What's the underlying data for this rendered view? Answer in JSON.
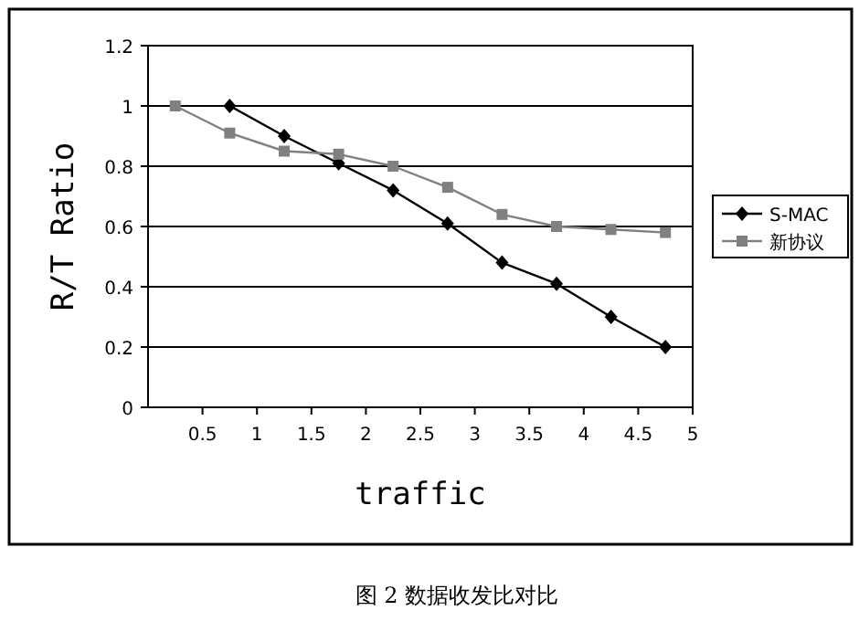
{
  "chart_data": {
    "type": "line",
    "xlabel": "traffic",
    "ylabel": "R/T Ratio",
    "xlim": [
      0,
      5
    ],
    "xticks": [
      0.5,
      1,
      1.5,
      2,
      2.5,
      3,
      3.5,
      4,
      4.5,
      5
    ],
    "ylim": [
      0,
      1.2
    ],
    "yticks": [
      0,
      0.2,
      0.4,
      0.6,
      0.8,
      1,
      1.2
    ],
    "grid": "y",
    "legend": "right",
    "line_style": "solid",
    "series": [
      {
        "name": "S-MAC",
        "color": "#000000",
        "marker": "diamond",
        "x": [
          0.75,
          1.25,
          1.75,
          2.25,
          2.75,
          3.25,
          3.75,
          4.25,
          4.75
        ],
        "values": [
          1.0,
          0.9,
          0.81,
          0.72,
          0.61,
          0.48,
          0.41,
          0.3,
          0.2
        ]
      },
      {
        "name": "新协议",
        "color": "#808080",
        "marker": "square",
        "x": [
          0.25,
          0.75,
          1.25,
          1.75,
          2.25,
          2.75,
          3.25,
          3.75,
          4.25,
          4.75
        ],
        "values": [
          1.0,
          0.91,
          0.85,
          0.84,
          0.8,
          0.73,
          0.64,
          0.6,
          0.59,
          0.58
        ]
      }
    ],
    "annotations": [
      "图 2 数据收发比对比"
    ]
  }
}
